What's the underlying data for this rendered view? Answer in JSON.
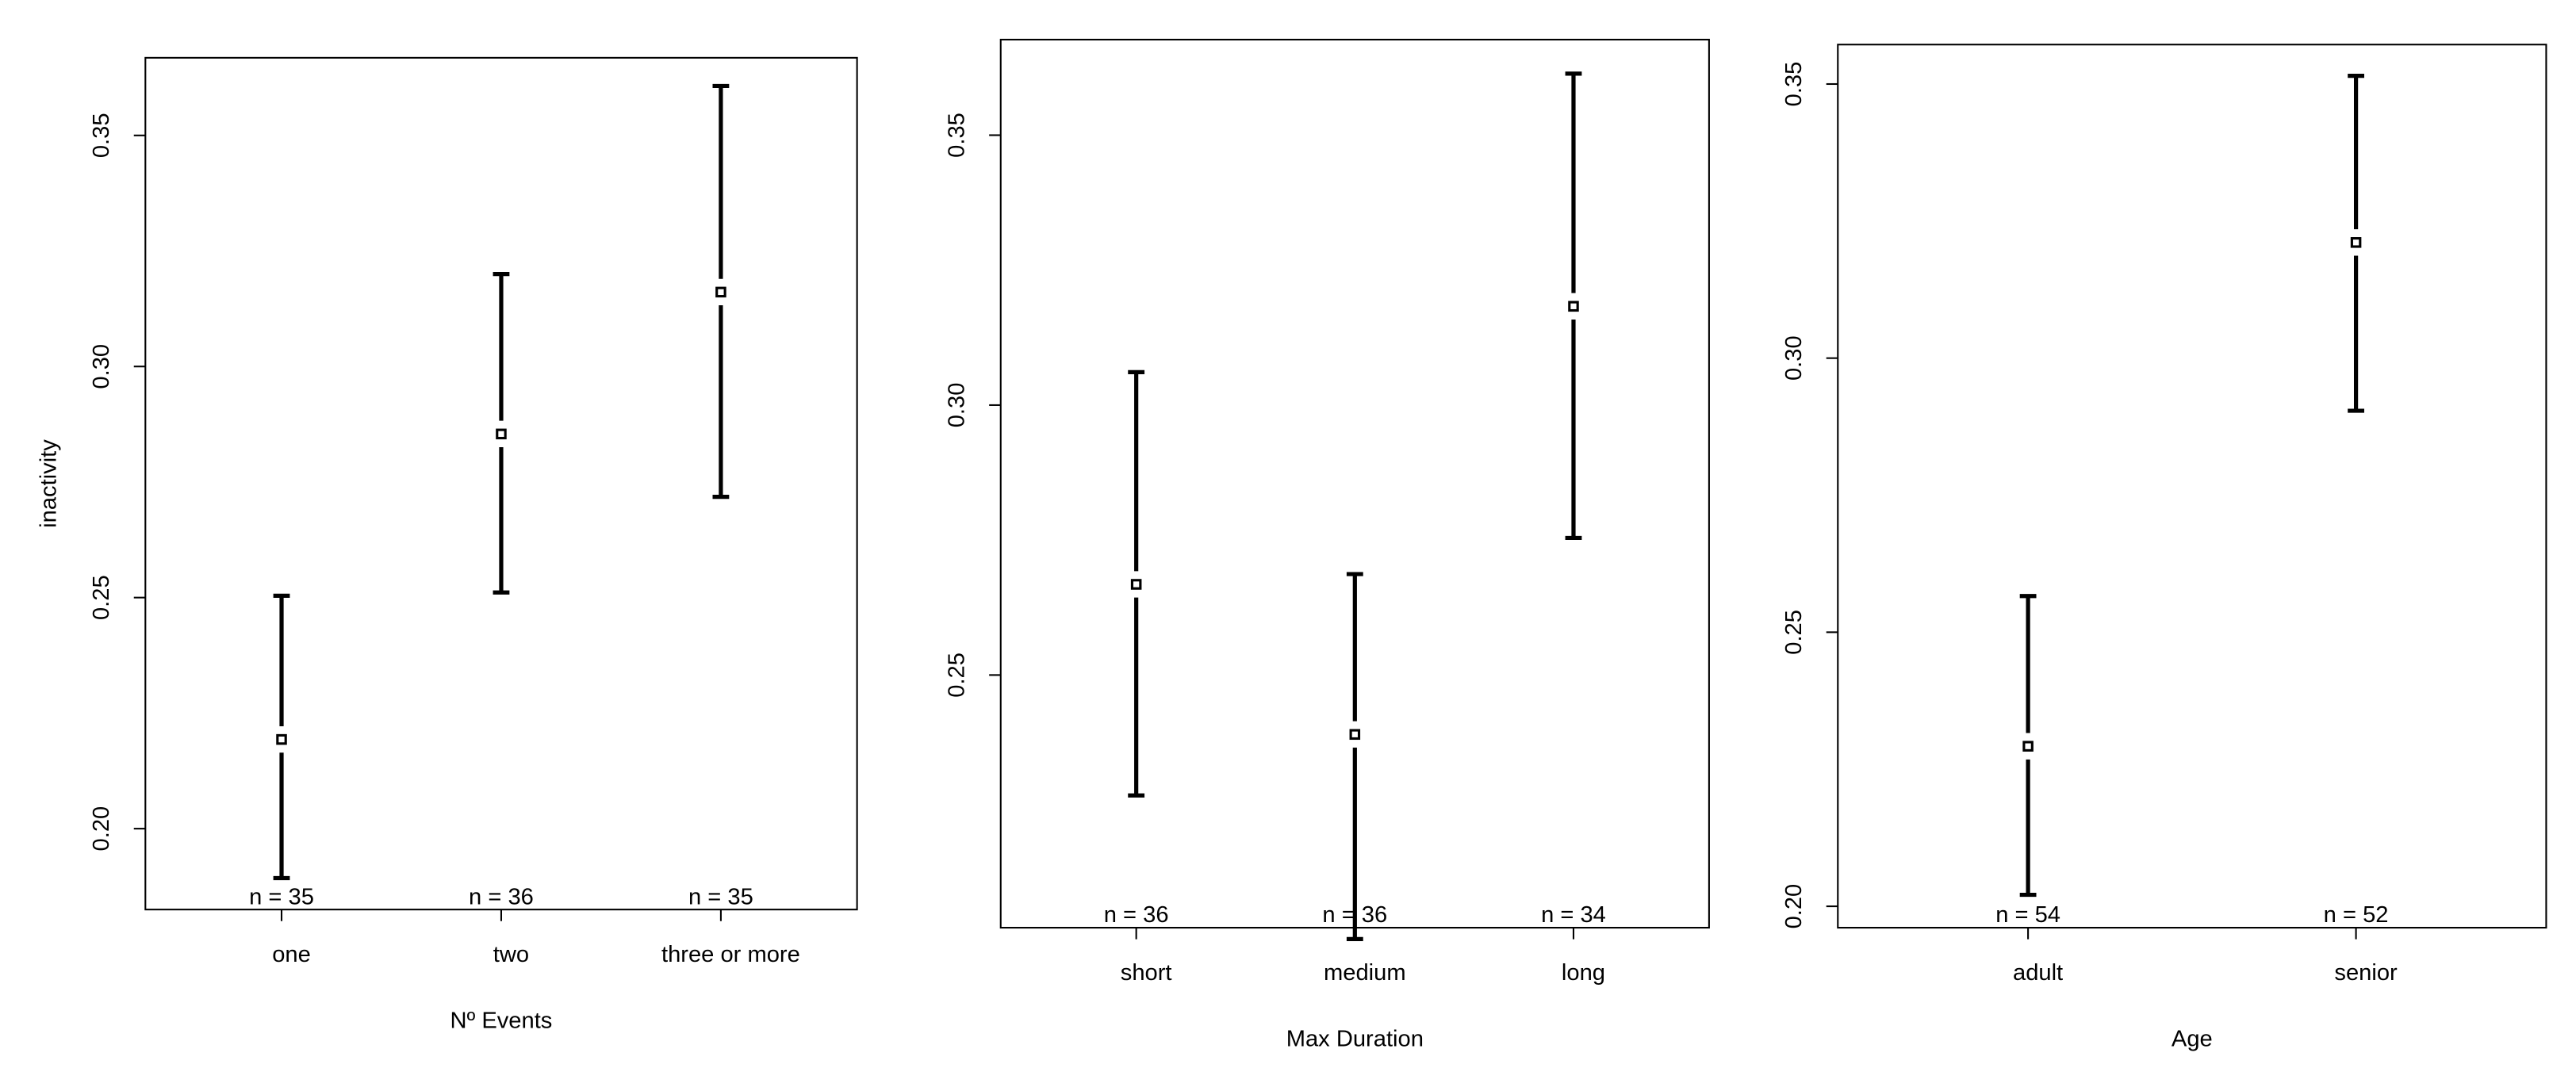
{
  "chart_data": [
    {
      "type": "errorbar",
      "y_label": "inactivity",
      "x_label": "Nº Events",
      "categories": [
        "one",
        "two",
        "three or more"
      ],
      "values": [
        0.2193,
        0.2854,
        0.3161
      ],
      "upper": [
        0.2504,
        0.32,
        0.3607
      ],
      "lower": [
        0.1893,
        0.2511,
        0.2718
      ],
      "n_labels": [
        "n = 35",
        "n = 36",
        "n = 35"
      ],
      "ylim": [
        0.1825,
        0.3668
      ],
      "yticks": [
        {
          "value": 0.2,
          "label": "0.20"
        },
        0.25,
        {
          "value": 0.3,
          "label": "0.30"
        },
        0.35
      ],
      "color": "#000000"
    },
    {
      "type": "errorbar",
      "x_label": "Max Duration",
      "categories": [
        "short",
        "medium",
        "long"
      ],
      "values": [
        0.2668,
        0.239,
        0.3183
      ],
      "upper": [
        0.3061,
        0.2687,
        0.3614
      ],
      "lower": [
        0.2277,
        0.2011,
        0.2754
      ],
      "n_labels": [
        "n = 36",
        "n = 36",
        "n = 34"
      ],
      "ylim": [
        0.2032,
        0.3677
      ],
      "yticks": [
        0.25,
        {
          "value": 0.3,
          "label": "0.30"
        },
        0.35
      ],
      "color": "#000000"
    },
    {
      "type": "errorbar",
      "x_label": "Age",
      "categories": [
        "adult",
        "senior"
      ],
      "values": [
        0.2292,
        0.3211
      ],
      "upper": [
        0.2566,
        0.3515
      ],
      "lower": [
        0.2021,
        0.2904
      ],
      "n_labels": [
        "n = 54",
        "n = 52"
      ],
      "ylim": [
        0.1961,
        0.3572
      ],
      "yticks": [
        {
          "value": 0.2,
          "label": "0.20"
        },
        0.25,
        {
          "value": 0.3,
          "label": "0.30"
        },
        0.35
      ],
      "color": "#000000"
    }
  ]
}
